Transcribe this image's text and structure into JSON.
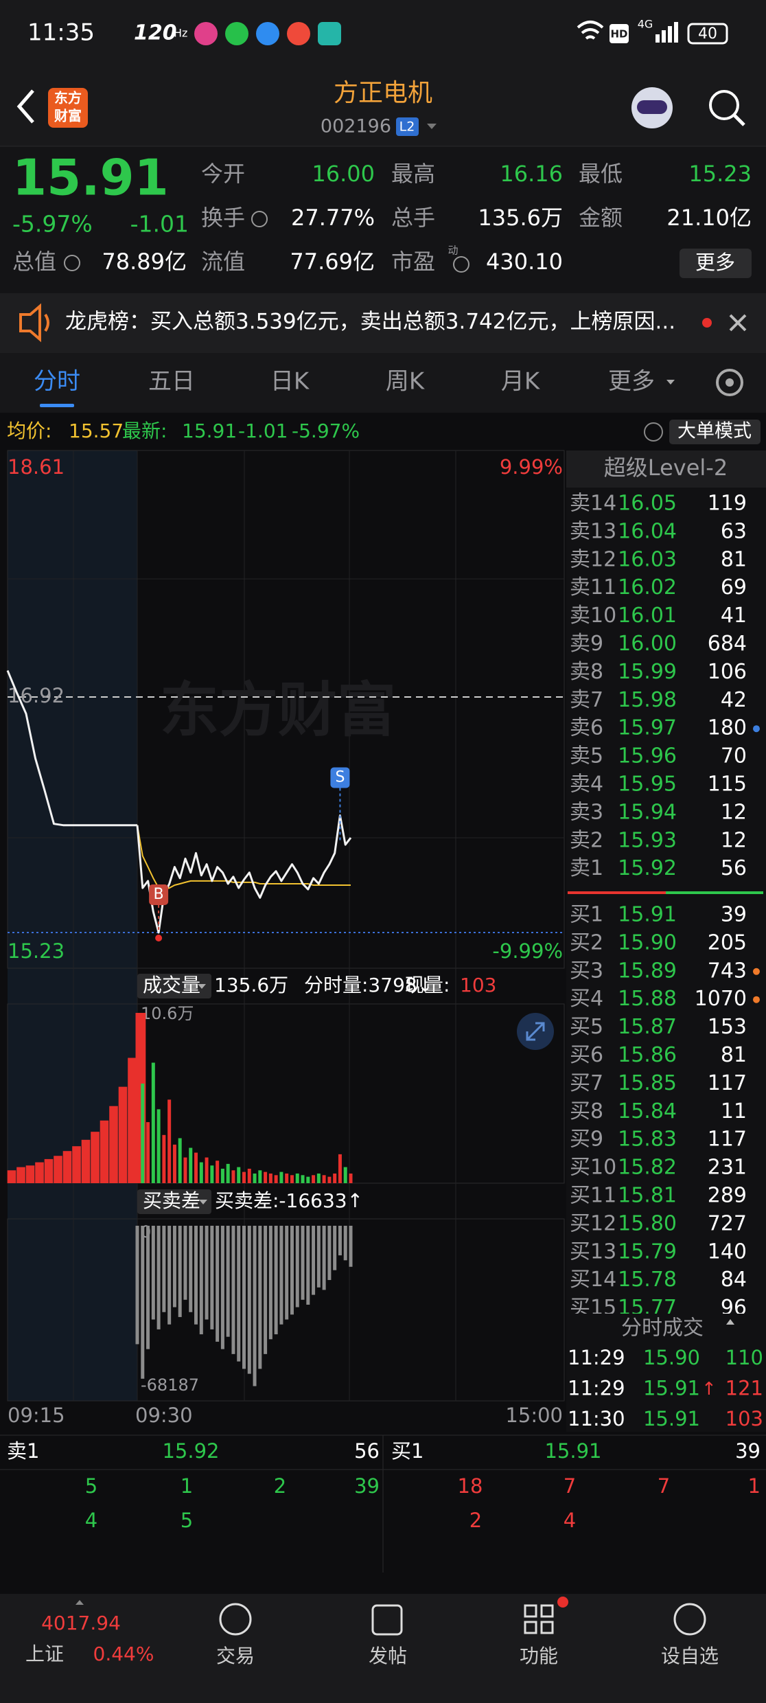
{
  "status_bar": {
    "time": "11:35",
    "refresh": "120",
    "refresh_unit": "Hz",
    "hd": "HD",
    "network": "4G",
    "battery": "40"
  },
  "header": {
    "logo_top": "东方",
    "logo_bottom": "财富",
    "title": "方正电机",
    "code": "002196",
    "badge": "L2"
  },
  "quote": {
    "price": "15.91",
    "change_pct": "-5.97%",
    "change": "-1.01",
    "fields": [
      {
        "label": "今开",
        "value": "16.00",
        "color": "#2ec74c"
      },
      {
        "label": "最高",
        "value": "16.16",
        "color": "#2ec74c"
      },
      {
        "label": "最低",
        "value": "15.23",
        "color": "#2ec74c"
      },
      {
        "label": "换手",
        "value": "27.77%",
        "color": "#ffffff"
      },
      {
        "label": "总手",
        "value": "135.6万",
        "color": "#ffffff"
      },
      {
        "label": "金额",
        "value": "21.10亿",
        "color": "#ffffff"
      },
      {
        "label": "总值",
        "value": "78.89亿",
        "color": "#ffffff"
      },
      {
        "label": "流值",
        "value": "77.69亿",
        "color": "#ffffff"
      },
      {
        "label": "市盈",
        "value": "430.10",
        "color": "#ffffff"
      }
    ],
    "pe_note": "动",
    "more": "更多"
  },
  "news": {
    "text": "龙虎榜：买入总额3.539亿元，卖出总额3.742亿元，上榜原因..."
  },
  "tabs": [
    "分时",
    "五日",
    "日K",
    "周K",
    "月K",
    "更多"
  ],
  "info_bar": {
    "avg_label": "均价:",
    "avg": "15.57",
    "latest_label": "最新:",
    "latest": "15.91",
    "change": "-1.01",
    "change_pct": "-5.97%",
    "mode_button": "大单模式"
  },
  "price_chart": {
    "ylim": [
      15.23,
      18.61
    ],
    "yticks": [
      18.61,
      16.92,
      15.23
    ],
    "pct_labels": [
      "9.99%",
      "-9.99%"
    ],
    "watermark": "东方财富",
    "buy_marker": "B",
    "sell_marker": "S",
    "time_labels": [
      "09:15",
      "09:30",
      "15:00"
    ],
    "premarket": [
      17.11,
      16.95,
      16.8,
      16.48,
      16.25,
      16.01,
      16.0,
      16.0,
      16.0,
      16.0,
      16.0,
      16.0,
      16.0,
      16.0,
      16.0
    ],
    "price": [
      16.0,
      15.55,
      15.6,
      15.38,
      15.23,
      15.5,
      15.58,
      15.7,
      15.62,
      15.76,
      15.66,
      15.8,
      15.64,
      15.72,
      15.6,
      15.7,
      15.66,
      15.58,
      15.63,
      15.55,
      15.61,
      15.66,
      15.55,
      15.48,
      15.57,
      15.63,
      15.67,
      15.6,
      15.66,
      15.72,
      15.66,
      15.58,
      15.54,
      15.62,
      15.58,
      15.66,
      15.72,
      15.8,
      16.07,
      15.86,
      15.91
    ],
    "avg": [
      16.0,
      15.78,
      15.7,
      15.62,
      15.55,
      15.54,
      15.55,
      15.57,
      15.58,
      15.59,
      15.6,
      15.6,
      15.6,
      15.6,
      15.6,
      15.6,
      15.6,
      15.6,
      15.59,
      15.59,
      15.59,
      15.59,
      15.59,
      15.58,
      15.58,
      15.58,
      15.58,
      15.58,
      15.58,
      15.58,
      15.58,
      15.58,
      15.58,
      15.57,
      15.57,
      15.57,
      15.57,
      15.57,
      15.57,
      15.57,
      15.57
    ]
  },
  "volume_chart": {
    "selector": "成交量",
    "total": "135.6万",
    "minute_volume": "分时量:3798↓",
    "current_label": "现量:",
    "current": "103",
    "ylim": [
      0,
      10.6
    ],
    "yticks": [
      {
        "value": 10.6,
        "label": "10.6万"
      }
    ],
    "premarket": [
      0.8,
      1.0,
      1.1,
      1.3,
      1.5,
      1.7,
      2.0,
      2.3,
      2.7,
      3.2,
      3.9,
      4.8,
      6.0,
      7.8,
      10.6
    ],
    "values": [
      10.6,
      6.2,
      3.8,
      7.5,
      4.6,
      3.0,
      5.2,
      2.4,
      2.8,
      1.6,
      2.2,
      1.9,
      1.3,
      1.6,
      1.1,
      1.4,
      0.9,
      1.2,
      0.8,
      1.0,
      0.7,
      0.9,
      0.6,
      0.8,
      0.7,
      0.6,
      0.5,
      0.7,
      0.6,
      0.5,
      0.6,
      0.5,
      0.4,
      0.5,
      0.6,
      0.5,
      0.4,
      0.6,
      1.8,
      1.0,
      0.6
    ]
  },
  "diff_chart": {
    "selector": "买卖差",
    "label": "买卖差:-16633↑",
    "ylim": [
      -68187,
      0
    ],
    "yticks": [
      0,
      -68187
    ],
    "values": [
      -48000,
      -62000,
      -50000,
      -38000,
      -42000,
      -35000,
      -40000,
      -33000,
      -37000,
      -30000,
      -35000,
      -40000,
      -44000,
      -38000,
      -42000,
      -47000,
      -50000,
      -45000,
      -52000,
      -55000,
      -58000,
      -60000,
      -65000,
      -58000,
      -52000,
      -46000,
      -44000,
      -40000,
      -38000,
      -36000,
      -33000,
      -30000,
      -32000,
      -28000,
      -25000,
      -26000,
      -22000,
      -18000,
      -12000,
      -14000,
      -16633
    ]
  },
  "order_book": {
    "title": "超级Level-2",
    "asks": [
      {
        "label": "卖14",
        "price": "16.05",
        "volume": "119"
      },
      {
        "label": "卖13",
        "price": "16.04",
        "volume": "63"
      },
      {
        "label": "卖12",
        "price": "16.03",
        "volume": "81"
      },
      {
        "label": "卖11",
        "price": "16.02",
        "volume": "69"
      },
      {
        "label": "卖10",
        "price": "16.01",
        "volume": "41"
      },
      {
        "label": "卖9",
        "price": "16.00",
        "volume": "684"
      },
      {
        "label": "卖8",
        "price": "15.99",
        "volume": "106"
      },
      {
        "label": "卖7",
        "price": "15.98",
        "volume": "42"
      },
      {
        "label": "卖6",
        "price": "15.97",
        "volume": "180",
        "dot": "#3d7fe0"
      },
      {
        "label": "卖5",
        "price": "15.96",
        "volume": "70"
      },
      {
        "label": "卖4",
        "price": "15.95",
        "volume": "115"
      },
      {
        "label": "卖3",
        "price": "15.94",
        "volume": "12"
      },
      {
        "label": "卖2",
        "price": "15.93",
        "volume": "12"
      },
      {
        "label": "卖1",
        "price": "15.92",
        "volume": "56"
      }
    ],
    "bids": [
      {
        "label": "买1",
        "price": "15.91",
        "volume": "39"
      },
      {
        "label": "买2",
        "price": "15.90",
        "volume": "205"
      },
      {
        "label": "买3",
        "price": "15.89",
        "volume": "743",
        "dot": "#f07a2a"
      },
      {
        "label": "买4",
        "price": "15.88",
        "volume": "1070",
        "dot": "#f07a2a"
      },
      {
        "label": "买5",
        "price": "15.87",
        "volume": "153"
      },
      {
        "label": "买6",
        "price": "15.86",
        "volume": "81"
      },
      {
        "label": "买7",
        "price": "15.85",
        "volume": "117"
      },
      {
        "label": "买8",
        "price": "15.84",
        "volume": "11"
      },
      {
        "label": "买9",
        "price": "15.83",
        "volume": "117"
      },
      {
        "label": "买10",
        "price": "15.82",
        "volume": "231"
      },
      {
        "label": "买11",
        "price": "15.81",
        "volume": "289"
      },
      {
        "label": "买12",
        "price": "15.80",
        "volume": "727"
      },
      {
        "label": "买13",
        "price": "15.79",
        "volume": "140"
      },
      {
        "label": "买14",
        "price": "15.78",
        "volume": "84"
      },
      {
        "label": "买15",
        "price": "15.77",
        "volume": "96"
      }
    ]
  },
  "trades": {
    "title": "分时成交",
    "rows": [
      {
        "time": "11:29",
        "price": "15.90",
        "volume": "110",
        "volume_color": "#2ec74c"
      },
      {
        "time": "11:29",
        "price": "15.91",
        "flag": "↑",
        "volume": "121",
        "volume_color": "#f03c3c"
      },
      {
        "time": "11:30",
        "price": "15.91",
        "volume": "103",
        "volume_color": "#f03c3c"
      }
    ]
  },
  "queue": {
    "ask": {
      "label": "卖1",
      "price": "15.92",
      "volume": "56",
      "orders": [
        "5",
        "1",
        "2",
        "39",
        "4",
        "5"
      ]
    },
    "bid": {
      "label": "买1",
      "price": "15.91",
      "volume": "39",
      "orders": [
        "18",
        "7",
        "7",
        "1",
        "2",
        "4"
      ]
    }
  },
  "nav": {
    "index_value": "4017.94",
    "index_name": "上证",
    "index_change": "0.44%",
    "items": [
      "交易",
      "发帖",
      "功能",
      "设自选"
    ]
  }
}
